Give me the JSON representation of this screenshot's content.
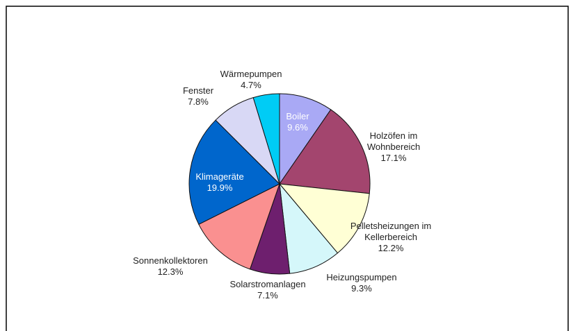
{
  "chart_data": {
    "type": "pie",
    "categories": [
      "Boiler",
      "Holzöfen im Wohnbereich",
      "Pelletsheizungen im Kellerbereich",
      "Heizungspumpen",
      "Solarstromanlagen",
      "Sonnenkollektoren",
      "Klimageräte",
      "Fenster",
      "Wärmepumpen"
    ],
    "values": [
      9.6,
      17.1,
      12.2,
      9.3,
      7.1,
      12.3,
      19.9,
      7.8,
      4.7
    ],
    "value_labels": [
      "9.6%",
      "17.1%",
      "12.2%",
      "9.3%",
      "7.1%",
      "12.3%",
      "19.9%",
      "7.8%",
      "4.7%"
    ],
    "colors": [
      "#a9a9f5",
      "#a3456e",
      "#ffffd5",
      "#d5f7fa",
      "#6e1f6e",
      "#fa9090",
      "#0066cc",
      "#d8d8f5",
      "#00ccf5"
    ]
  }
}
